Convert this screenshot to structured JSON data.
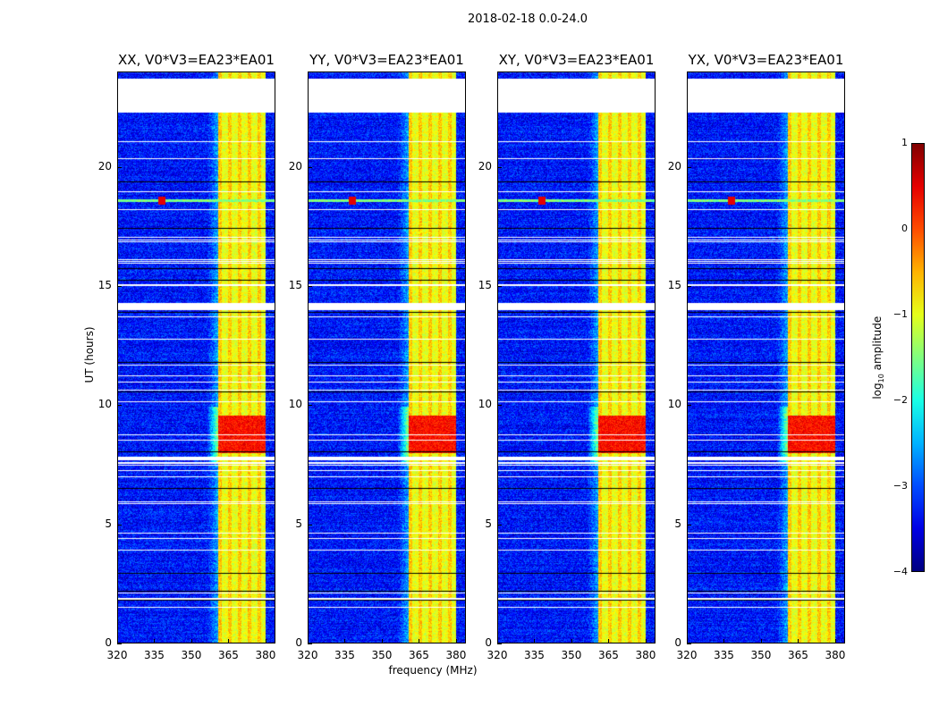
{
  "chart_data": {
    "type": "heatmap",
    "title": "2018-02-18 0.0-24.0",
    "xlabel": "frequency (MHz)",
    "ylabel": "UT (hours)",
    "xlim": [
      320,
      384
    ],
    "ylim": [
      0,
      24
    ],
    "xticks": [
      "320",
      "335",
      "350",
      "365",
      "380"
    ],
    "yticks": [
      "0",
      "5",
      "10",
      "15",
      "20"
    ],
    "panels": [
      {
        "title": "XX, V0*V3=EA23*EA01"
      },
      {
        "title": "YY, V0*V3=EA23*EA01"
      },
      {
        "title": "XY, V0*V3=EA23*EA01"
      },
      {
        "title": "YX, V0*V3=EA23*EA01"
      }
    ],
    "colorbar": {
      "label": "log10 amplitude",
      "label_main": "log",
      "label_sub": "10",
      "label_rest": " amplitude",
      "range": [
        -4,
        1
      ],
      "ticks": [
        "1",
        "0",
        "−1",
        "−2",
        "−3",
        "−4"
      ],
      "colormap": "jet"
    },
    "background_level": -3.3,
    "rfi_band_mhz": [
      360.5,
      380
    ],
    "rfi_band_level": -1.0,
    "strong_rfi_hours": [
      8.0,
      9.6
    ],
    "strong_rfi_level": 0.2,
    "flagged_hours": [
      [
        22.3,
        23.7
      ],
      [
        14.0,
        14.3
      ],
      [
        7.7,
        7.85
      ]
    ],
    "narrowband_event_hours": 18.6
  }
}
